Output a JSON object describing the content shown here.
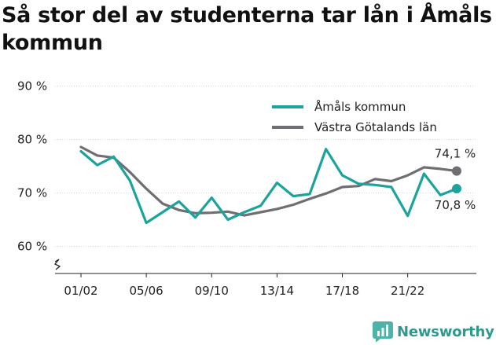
{
  "title": "Så stor del av studenterna tar lån i Åmåls kommun",
  "brand": "Newsworthy",
  "chart_data": {
    "type": "line",
    "title": "Så stor del av studenterna tar lån i Åmåls kommun",
    "xlabel": "",
    "ylabel": "",
    "ylim": [
      56,
      92
    ],
    "yticks": [
      60,
      70,
      80,
      90
    ],
    "ytick_labels": [
      "60 %",
      "70 %",
      "80 %",
      "90 %"
    ],
    "x_labels_shown": [
      "01/02",
      "05/06",
      "09/10",
      "13/14",
      "17/18",
      "21/22"
    ],
    "categories": [
      "01/02",
      "02/03",
      "03/04",
      "04/05",
      "05/06",
      "06/07",
      "07/08",
      "08/09",
      "09/10",
      "10/11",
      "11/12",
      "12/13",
      "13/14",
      "14/15",
      "15/16",
      "16/17",
      "17/18",
      "18/19",
      "19/20",
      "20/21",
      "21/22",
      "22/23",
      "23/24",
      "24/25"
    ],
    "grid": "horizontal",
    "legend_position": "top-right",
    "series": [
      {
        "name": "Åmåls kommun",
        "color": "#1ba39c",
        "values": [
          77.8,
          75.2,
          76.8,
          72.3,
          64.4,
          66.4,
          68.4,
          65.4,
          69.1,
          65.0,
          66.4,
          67.6,
          71.9,
          69.4,
          69.8,
          78.2,
          73.3,
          71.7,
          71.5,
          71.1,
          65.7,
          73.6,
          69.6,
          70.8
        ],
        "end_label": "70,8 %"
      },
      {
        "name": "Västra Götalands län",
        "color": "#6f6e73",
        "values": [
          78.6,
          77.0,
          76.6,
          73.9,
          70.8,
          68.0,
          66.8,
          66.2,
          66.3,
          66.5,
          65.8,
          66.4,
          67.0,
          67.8,
          68.9,
          69.9,
          71.1,
          71.3,
          72.6,
          72.2,
          73.3,
          74.8,
          74.5,
          74.1
        ],
        "end_label": "74,1 %"
      }
    ]
  }
}
